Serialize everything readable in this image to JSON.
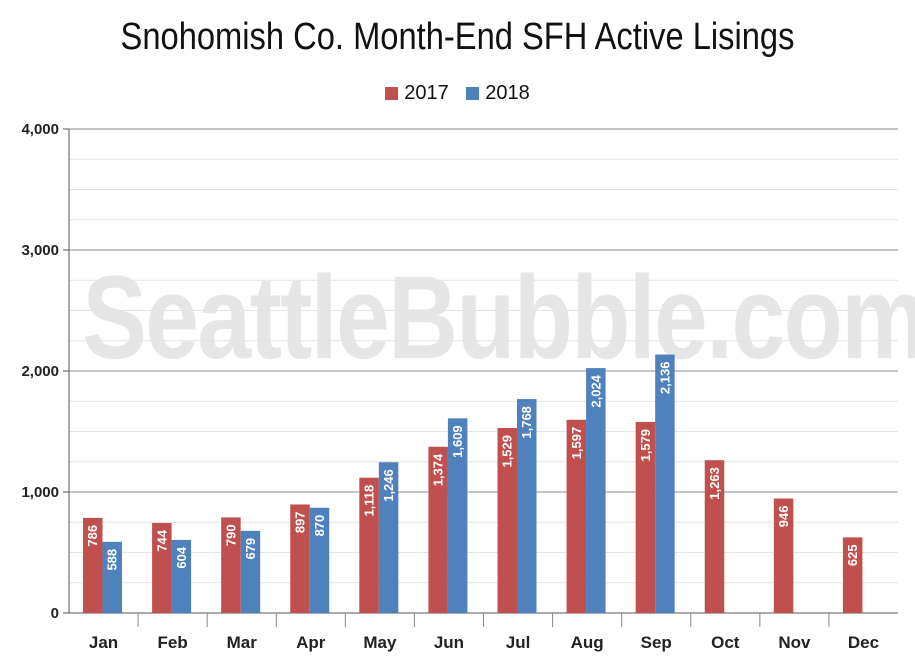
{
  "chart_data": {
    "type": "bar",
    "title": "Snohomish Co. Month-End SFH Active Lisings",
    "watermark": "SeattleBubble.com",
    "categories": [
      "Jan",
      "Feb",
      "Mar",
      "Apr",
      "May",
      "Jun",
      "Jul",
      "Aug",
      "Sep",
      "Oct",
      "Nov",
      "Dec"
    ],
    "series": [
      {
        "name": "2017",
        "color": "#c0504d",
        "values": [
          786,
          744,
          790,
          897,
          1118,
          1374,
          1529,
          1597,
          1579,
          1263,
          946,
          625
        ],
        "labels": [
          "786",
          "744",
          "790",
          "897",
          "1,118",
          "1,374",
          "1,529",
          "1,597",
          "1,579",
          "1,263",
          "946",
          "625"
        ]
      },
      {
        "name": "2018",
        "color": "#4f81bd",
        "values": [
          588,
          604,
          679,
          870,
          1246,
          1609,
          1768,
          2024,
          2136,
          null,
          null,
          null
        ],
        "labels": [
          "588",
          "604",
          "679",
          "870",
          "1,246",
          "1,609",
          "1,768",
          "2,024",
          "2,136",
          "",
          "",
          ""
        ]
      }
    ],
    "ylim": [
      0,
      4000
    ],
    "yticks": [
      0,
      1000,
      2000,
      3000,
      4000
    ],
    "ytick_labels": [
      "0",
      "1,000",
      "2,000",
      "3,000",
      "4,000"
    ],
    "xlabel": "",
    "ylabel": "",
    "legend_position": "top",
    "grid": true
  }
}
